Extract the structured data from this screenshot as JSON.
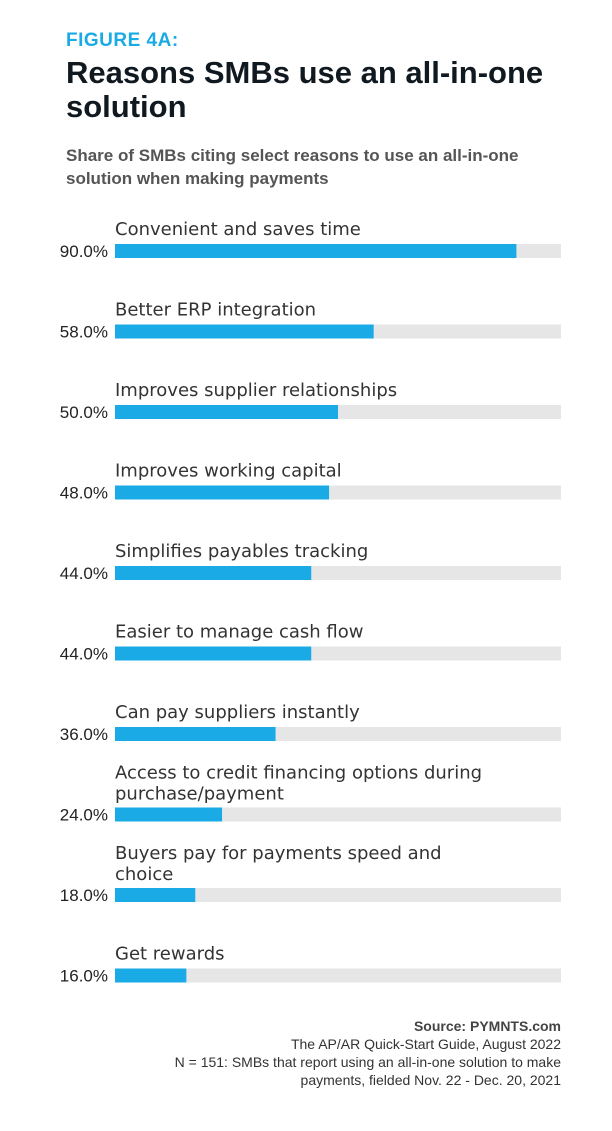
{
  "figure_label": "FIGURE 4A:",
  "title": "Reasons SMBs use an all-in-one solution",
  "subtitle": "Share of SMBs citing select reasons to use an all-in-one solution when making payments",
  "colors": {
    "bar": "#1aabe6",
    "track": "#e6e6e6",
    "accent": "#1aabe6"
  },
  "chart_data": {
    "type": "bar",
    "orientation": "horizontal",
    "categories": [
      [
        "Convenient and saves time"
      ],
      [
        "Better ERP integration"
      ],
      [
        "Improves supplier relationships"
      ],
      [
        "Improves working capital"
      ],
      [
        "Simplifies payables tracking"
      ],
      [
        "Easier to manage cash flow"
      ],
      [
        "Can pay suppliers instantly"
      ],
      [
        "Access to credit financing options during",
        "purchase/payment"
      ],
      [
        "Buyers pay for payments speed and",
        "choice"
      ],
      [
        "Get rewards"
      ]
    ],
    "values": [
      90.0,
      58.0,
      50.0,
      48.0,
      44.0,
      44.0,
      36.0,
      24.0,
      18.0,
      16.0
    ],
    "value_labels": [
      "90.0%",
      "58.0%",
      "50.0%",
      "48.0%",
      "44.0%",
      "44.0%",
      "36.0%",
      "24.0%",
      "18.0%",
      "16.0%"
    ],
    "xlim": [
      0,
      100
    ],
    "grid": false,
    "legend": "none"
  },
  "footer": {
    "source": "Source: PYMNTS.com",
    "line1": "The AP/AR Quick-Start Guide, August 2022",
    "line2": "N = 151: SMBs that report using an all-in-one solution to make",
    "line3": "payments, fielded Nov. 22 - Dec. 20, 2021"
  }
}
